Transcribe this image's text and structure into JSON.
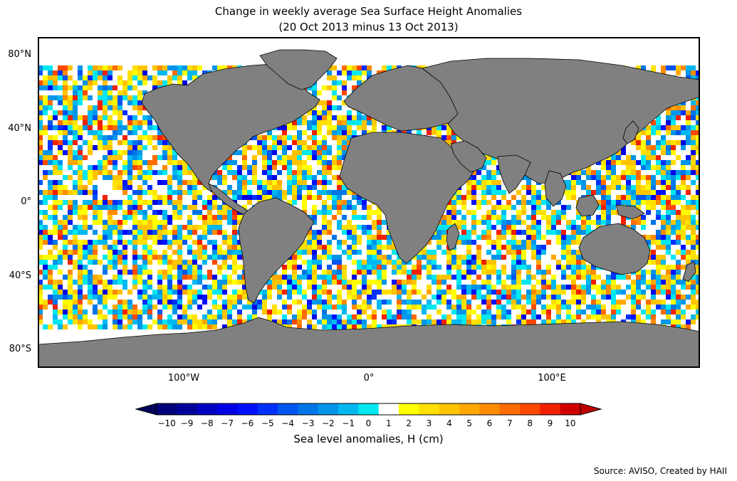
{
  "title_line1": "Change in weekly average Sea Surface Height Anomalies",
  "title_line2": "(20 Oct 2013 minus 13 Oct 2013)",
  "lat_ticks": [
    "80°N",
    "40°N",
    "0°",
    "40°S",
    "80°S"
  ],
  "lon_ticks": [
    "100°W",
    "0°",
    "100°E"
  ],
  "colorbar": {
    "label": "Sea level anomalies, H (cm)",
    "ticks": [
      "−10",
      "−9",
      "−8",
      "−7",
      "−6",
      "−5",
      "−4",
      "−3",
      "−2",
      "−1",
      "0",
      "1",
      "2",
      "3",
      "4",
      "5",
      "6",
      "7",
      "8",
      "9",
      "10"
    ],
    "colors": [
      "#00007a",
      "#00009a",
      "#0000c0",
      "#0000e6",
      "#0010ff",
      "#0030ff",
      "#0055f0",
      "#0075e8",
      "#0095e8",
      "#00b8f0",
      "#00e8f0",
      "#ffffff",
      "#ffff00",
      "#ffe000",
      "#ffc400",
      "#ffa800",
      "#ff8c00",
      "#ff6c00",
      "#ff4800",
      "#f02000",
      "#d00000"
    ],
    "extend_low_color": "#00005a",
    "extend_high_color": "#c00000"
  },
  "source": "Source: AVISO, Created by HAII",
  "colors": {
    "land": "#808080",
    "ocean_frame": "#000000"
  }
}
